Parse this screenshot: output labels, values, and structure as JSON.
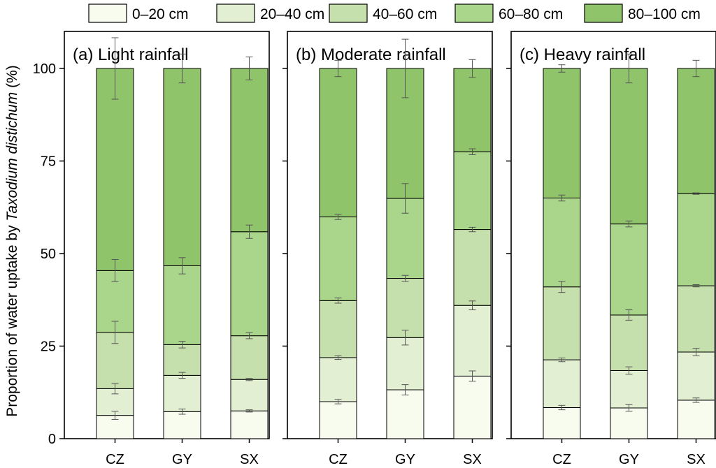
{
  "chart_data": {
    "type": "bar",
    "stacked": true,
    "ylabel_prefix": "Proportion of water uptake by ",
    "ylabel_species": "Taxodium distichum",
    "ylabel_suffix": " (%)",
    "ylim": [
      0,
      110
    ],
    "yticks": [
      0,
      25,
      50,
      75,
      100
    ],
    "categories": [
      "CZ",
      "GY",
      "SX"
    ],
    "legend_position": "top",
    "layers": [
      {
        "name": "0–20 cm",
        "color": "#f7fcee"
      },
      {
        "name": "20–40 cm",
        "color": "#e2efd2"
      },
      {
        "name": "40–60 cm",
        "color": "#c6e0ad"
      },
      {
        "name": "60–80 cm",
        "color": "#aad68c"
      },
      {
        "name": "80–100 cm",
        "color": "#90c46a"
      }
    ],
    "panels": [
      {
        "title": "(a) Light rainfall",
        "stack_tops": [
          [
            6.3,
            13.5,
            28.7,
            45.4,
            100
          ],
          [
            7.3,
            17.1,
            25.4,
            46.7,
            100
          ],
          [
            7.5,
            16.0,
            27.8,
            55.9,
            100
          ]
        ],
        "errors": [
          [
            1.1,
            1.4,
            3.0,
            3.0,
            8.3
          ],
          [
            0.7,
            0.8,
            0.9,
            2.2,
            3.9
          ],
          [
            0.3,
            0.3,
            0.8,
            1.8,
            3.1
          ]
        ]
      },
      {
        "title": "(b) Moderate rainfall",
        "stack_tops": [
          [
            10.0,
            21.9,
            37.3,
            59.9,
            100
          ],
          [
            13.2,
            27.3,
            43.3,
            64.9,
            100
          ],
          [
            16.9,
            36.0,
            56.5,
            77.5,
            100
          ]
        ],
        "errors": [
          [
            0.6,
            0.5,
            0.7,
            0.7,
            2.2
          ],
          [
            1.4,
            2.0,
            0.8,
            4.0,
            7.9
          ],
          [
            1.4,
            1.2,
            0.6,
            0.8,
            2.4
          ]
        ]
      },
      {
        "title": "(c) Heavy rainfall",
        "stack_tops": [
          [
            8.4,
            21.3,
            41.0,
            65.0,
            100
          ],
          [
            8.3,
            18.4,
            33.4,
            58.0,
            100
          ],
          [
            10.4,
            23.4,
            41.3,
            66.2,
            100
          ]
        ],
        "errors": [
          [
            0.6,
            0.5,
            1.5,
            0.8,
            1.0
          ],
          [
            0.9,
            1.0,
            1.4,
            0.8,
            3.9
          ],
          [
            0.6,
            1.0,
            0.3,
            0.2,
            2.2
          ]
        ]
      }
    ]
  }
}
